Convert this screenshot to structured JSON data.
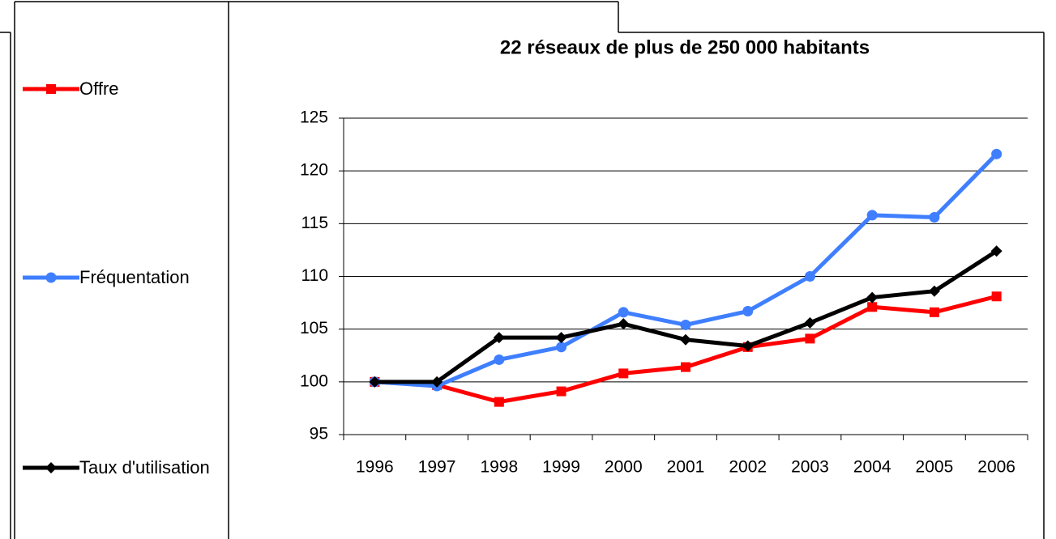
{
  "chart_data": {
    "type": "line",
    "title": "22 réseaux de plus de 250 000 habitants",
    "categories": [
      "1996",
      "1997",
      "1998",
      "1999",
      "2000",
      "2001",
      "2002",
      "2003",
      "2004",
      "2005",
      "2006"
    ],
    "series": [
      {
        "name": "Offre",
        "color": "#ff0000",
        "marker": "square",
        "values": [
          100,
          99.7,
          98.1,
          99.1,
          100.8,
          101.4,
          103.3,
          104.1,
          107.1,
          106.6,
          108.1
        ]
      },
      {
        "name": "Fréquentation",
        "color": "#3f7fff",
        "marker": "circle",
        "values": [
          100,
          99.6,
          102.1,
          103.3,
          106.6,
          105.4,
          106.7,
          110.0,
          115.8,
          115.6,
          121.6
        ]
      },
      {
        "name": "Taux d'utilisation",
        "color": "#000000",
        "marker": "diamond",
        "values": [
          100,
          100,
          104.2,
          104.2,
          105.5,
          104.0,
          103.4,
          105.6,
          108.0,
          108.6,
          112.4
        ]
      }
    ],
    "ylim": [
      95,
      125
    ],
    "yticks": [
      95,
      100,
      105,
      110,
      115,
      120,
      125
    ],
    "grid": true
  }
}
